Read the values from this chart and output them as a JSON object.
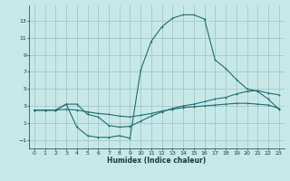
{
  "xlabel": "Humidex (Indice chaleur)",
  "bg_color": "#c8e8e8",
  "grid_color": "#a0c8c8",
  "line_color": "#1e6e6e",
  "x_ticks": [
    0,
    1,
    2,
    3,
    4,
    5,
    6,
    7,
    8,
    9,
    10,
    11,
    12,
    13,
    14,
    15,
    16,
    17,
    18,
    19,
    20,
    21,
    22,
    23
  ],
  "y_ticks": [
    -1,
    1,
    3,
    5,
    7,
    9,
    11,
    13
  ],
  "ylim": [
    -2.0,
    14.8
  ],
  "xlim": [
    -0.5,
    23.5
  ],
  "series_spike_x": [
    0,
    1,
    2,
    3,
    4,
    5,
    6,
    7,
    8,
    9,
    10,
    11,
    12,
    13,
    14,
    15,
    16,
    17,
    18,
    19,
    20,
    21,
    22,
    23
  ],
  "series_spike_y": [
    2.5,
    2.5,
    2.5,
    3.2,
    0.5,
    -0.5,
    -0.7,
    -0.7,
    -0.5,
    -0.8,
    7.2,
    10.6,
    12.3,
    13.3,
    13.7,
    13.7,
    13.2,
    8.4,
    7.4,
    6.1,
    5.0,
    4.7,
    3.8,
    2.6
  ],
  "series_upper_x": [
    0,
    1,
    2,
    3,
    4,
    5,
    6,
    7,
    8,
    9,
    10,
    11,
    12,
    13,
    14,
    15,
    16,
    17,
    18,
    19,
    20,
    21,
    22,
    23
  ],
  "series_upper_y": [
    2.5,
    2.5,
    2.5,
    3.2,
    3.2,
    2.0,
    1.7,
    0.7,
    0.5,
    0.6,
    1.2,
    1.8,
    2.3,
    2.7,
    3.0,
    3.2,
    3.5,
    3.8,
    4.0,
    4.4,
    4.7,
    4.8,
    4.5,
    4.3
  ],
  "series_lower_x": [
    0,
    1,
    2,
    3,
    4,
    5,
    6,
    7,
    8,
    9,
    10,
    11,
    12,
    13,
    14,
    15,
    16,
    17,
    18,
    19,
    20,
    21,
    22,
    23
  ],
  "series_lower_y": [
    2.5,
    2.5,
    2.5,
    2.6,
    2.5,
    2.3,
    2.1,
    2.0,
    1.8,
    1.7,
    1.9,
    2.1,
    2.4,
    2.6,
    2.8,
    2.9,
    3.0,
    3.1,
    3.2,
    3.3,
    3.3,
    3.2,
    3.1,
    2.7
  ]
}
